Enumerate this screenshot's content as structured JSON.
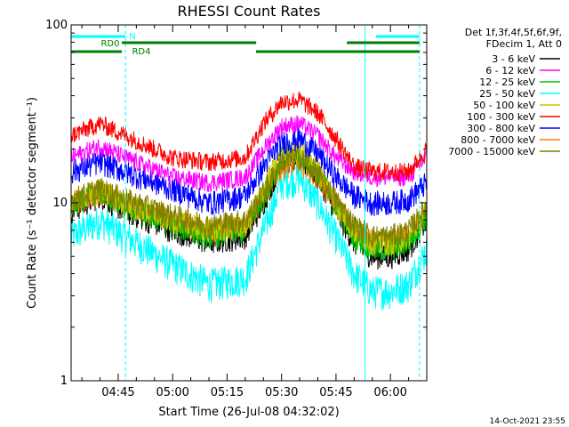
{
  "chart_data": {
    "type": "line",
    "title": "RHESSI Count Rates",
    "xlabel": "Start Time (26-Jul-08 04:32:02)",
    "ylabel": "Count Rate (s⁻¹ detector segment⁻¹)",
    "y_scale": "log",
    "ylim": [
      1,
      100
    ],
    "xlim": [
      "04:32:02",
      "06:10:00"
    ],
    "x_ticks": [
      "04:45",
      "05:00",
      "05:15",
      "05:30",
      "05:45",
      "06:00"
    ],
    "y_ticks": [
      "1",
      "10",
      "100"
    ],
    "legend_header": [
      "Det 1f,3f,4f,5f,6f,9f,",
      "FDecim 1, Att 0"
    ],
    "legend_placement": "right",
    "footer_date": "14-Oct-2021 23:55",
    "attenuator_flags": [
      {
        "label": "N",
        "color": "#00ffff",
        "segments": [
          [
            "04:32",
            "04:47"
          ],
          [
            "05:56",
            "06:08"
          ]
        ]
      },
      {
        "label": "RD0",
        "color": "#008000",
        "segments": [
          [
            "05:23",
            "05:48"
          ],
          [
            "04:49",
            "05:23"
          ],
          [
            "05:48",
            "06:08"
          ]
        ]
      },
      {
        "label": "RD4",
        "color": "#008000",
        "segments": [
          [
            "04:32",
            "04:46"
          ],
          [
            "04:46",
            "05:23"
          ],
          [
            "05:23",
            "06:08"
          ]
        ]
      }
    ],
    "vertical_markers": [
      {
        "time": "04:47",
        "color": "#00ffff",
        "style": "dashed"
      },
      {
        "time": "05:53",
        "color": "#00ffff",
        "style": "solid"
      },
      {
        "time": "06:08",
        "color": "#00ffff",
        "style": "dashed"
      }
    ],
    "times": [
      "04:32",
      "04:40",
      "04:47",
      "05:00",
      "05:10",
      "05:20",
      "05:25",
      "05:30",
      "05:35",
      "05:40",
      "05:45",
      "05:50",
      "05:55",
      "06:00",
      "06:05",
      "06:10"
    ],
    "series": [
      {
        "name": "3 - 6 keV",
        "color": "#000000",
        "values": [
          9,
          11,
          9,
          7,
          6,
          6.5,
          10,
          17,
          18,
          14,
          9,
          6,
          5,
          5,
          5.5,
          8
        ]
      },
      {
        "name": "6 - 12 keV",
        "color": "#ff00ff",
        "values": [
          18,
          21,
          18,
          14,
          13,
          14,
          20,
          27,
          28,
          24,
          18,
          15,
          14,
          14,
          14,
          18
        ]
      },
      {
        "name": "12 - 25 keV",
        "color": "#00c000",
        "values": [
          9.5,
          11.5,
          9.5,
          7.5,
          6.5,
          7,
          11,
          18,
          19,
          15,
          9.5,
          6.5,
          5.5,
          5.5,
          6,
          8.5
        ]
      },
      {
        "name": "25 - 50 keV",
        "color": "#00ffff",
        "values": [
          6.5,
          8,
          6.5,
          4.5,
          3.5,
          3.8,
          7,
          13,
          14,
          10,
          6.5,
          4,
          3.2,
          3.2,
          3.5,
          5.5
        ]
      },
      {
        "name": "50 - 100 keV",
        "color": "#c8c800",
        "values": [
          10,
          12,
          10,
          8,
          7,
          7.5,
          12,
          19,
          20,
          16,
          10,
          7,
          6,
          6,
          6.5,
          9
        ]
      },
      {
        "name": "100 - 300 keV",
        "color": "#ff0000",
        "values": [
          24,
          28,
          24,
          18,
          17,
          18,
          28,
          37,
          38,
          32,
          23,
          16,
          15,
          15,
          15,
          20
        ]
      },
      {
        "name": "300 - 800 keV",
        "color": "#0000ff",
        "values": [
          15,
          17,
          15,
          12,
          10,
          11,
          16,
          22,
          23,
          19,
          14,
          11,
          10,
          10,
          10.5,
          13
        ]
      },
      {
        "name": "800 - 7000 keV",
        "color": "#ff8000",
        "values": [
          10,
          11.5,
          10,
          8,
          7,
          7.5,
          11,
          16,
          17,
          14,
          10,
          7,
          6,
          6,
          6.5,
          9
        ]
      },
      {
        "name": "7000 - 15000 keV",
        "color": "#808000",
        "values": [
          10.5,
          12,
          10.5,
          8.5,
          7.5,
          8,
          11.5,
          17,
          18,
          14.5,
          10.5,
          7.5,
          6.5,
          6.5,
          7,
          9.5
        ]
      }
    ]
  }
}
